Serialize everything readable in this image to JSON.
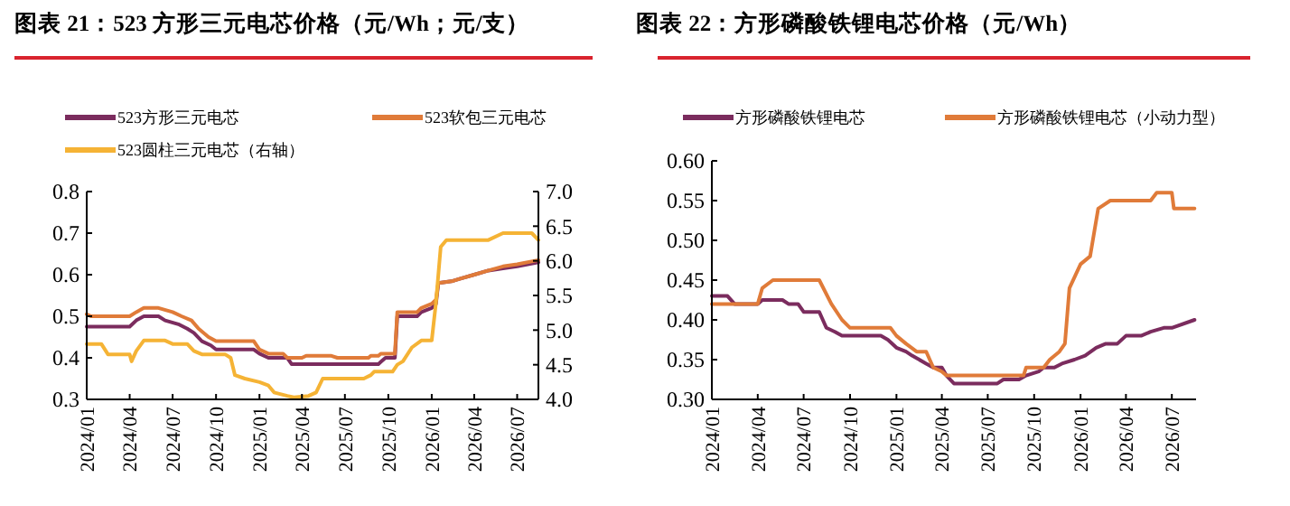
{
  "chart_data": [
    {
      "type": "line",
      "title": "图表 21：523 方形三元电芯价格（元/Wh；元/支）",
      "legend": "top",
      "xlim": [
        "2024-01",
        "2026-08-15"
      ],
      "xticks": [
        {
          "value": "2024-01",
          "label": "2024/01"
        },
        {
          "value": "2024-04",
          "label": "2024/04"
        },
        {
          "value": "2024-07",
          "label": "2024/07"
        },
        {
          "value": "2024-10",
          "label": "2024/10"
        },
        {
          "value": "2025-01",
          "label": "2025/01"
        },
        {
          "value": "2025-04",
          "label": "2025/04"
        },
        {
          "value": "2025-07",
          "label": "2025/07"
        },
        {
          "value": "2025-10",
          "label": "2025/10"
        },
        {
          "value": "2026-01",
          "label": "2026/01"
        },
        {
          "value": "2026-04",
          "label": "2026/04"
        },
        {
          "value": "2026-07",
          "label": "2026/07"
        }
      ],
      "ylim": [
        0.3,
        0.8
      ],
      "yticks": [
        0.3,
        0.4,
        0.5,
        0.6,
        0.7,
        0.8
      ],
      "y2lim": [
        4,
        7
      ],
      "y2ticks": [
        {
          "value": 4,
          "label": "4.0"
        },
        {
          "value": 4.5,
          "label": "4.5"
        },
        {
          "value": 5,
          "label": "5.0"
        },
        {
          "value": 5.5,
          "label": "5.5"
        },
        {
          "value": 6,
          "label": "6.0"
        },
        {
          "value": 6.5,
          "label": "6.5"
        },
        {
          "value": 7,
          "label": "7.0"
        }
      ],
      "series": [
        {
          "name": "523方形三元电芯",
          "color": "#7b2c5e",
          "x": [
            "2024-01",
            "2024-04",
            "2024-04-15",
            "2024-05",
            "2024-06",
            "2024-06-15",
            "2024-07-15",
            "2024-08",
            "2024-08-15",
            "2024-09",
            "2024-09-20",
            "2024-10",
            "2024-12-20",
            "2025-01",
            "2025-01-20",
            "2025-03",
            "2025-03-10",
            "2025-09-10",
            "2025-09-15",
            "2025-09-25",
            "2025-10-15",
            "2025-10-20",
            "2025-12",
            "2025-12-10",
            "2026-01",
            "2026-01-10",
            "2026-01-15",
            "2026-02-15",
            "2026-03",
            "2026-04",
            "2026-05",
            "2026-06",
            "2026-07",
            "2026-08-15"
          ],
          "values": [
            0.475,
            0.475,
            0.49,
            0.5,
            0.5,
            0.49,
            0.48,
            0.47,
            0.46,
            0.44,
            0.43,
            0.42,
            0.42,
            0.41,
            0.4,
            0.4,
            0.385,
            0.385,
            0.39,
            0.4,
            0.4,
            0.5,
            0.5,
            0.51,
            0.52,
            0.53,
            0.58,
            0.585,
            0.59,
            0.6,
            0.61,
            0.615,
            0.62,
            0.63
          ]
        },
        {
          "name": "523软包三元电芯",
          "color": "#e07b39",
          "x": [
            "2024-01",
            "2024-01-10",
            "2024-04",
            "2024-04-15",
            "2024-05",
            "2024-06",
            "2024-07",
            "2024-07-20",
            "2024-08-10",
            "2024-08-25",
            "2024-09-15",
            "2024-10",
            "2024-12-20",
            "2025-01",
            "2025-01-20",
            "2025-02-20",
            "2025-03",
            "2025-04",
            "2025-04-10",
            "2025-06",
            "2025-06-15",
            "2025-08-20",
            "2025-08-25",
            "2025-09-10",
            "2025-09-15",
            "2025-10-15",
            "2025-10-20",
            "2025-12",
            "2025-12-10",
            "2026-01",
            "2026-01-10",
            "2026-01-15",
            "2026-02-15",
            "2026-03",
            "2026-04",
            "2026-05",
            "2026-06",
            "2026-07",
            "2026-08-15"
          ],
          "values": [
            0.505,
            0.5,
            0.5,
            0.51,
            0.52,
            0.52,
            0.51,
            0.5,
            0.49,
            0.47,
            0.45,
            0.44,
            0.44,
            0.42,
            0.41,
            0.41,
            0.4,
            0.4,
            0.405,
            0.405,
            0.4,
            0.4,
            0.405,
            0.405,
            0.41,
            0.41,
            0.51,
            0.51,
            0.52,
            0.53,
            0.54,
            0.58,
            0.585,
            0.59,
            0.6,
            0.61,
            0.62,
            0.625,
            0.635
          ]
        },
        {
          "name": "523圆柱三元电芯（右轴）",
          "color": "#f5b335",
          "axis": "y2",
          "x": [
            "2024-01",
            "2024-02",
            "2024-02-15",
            "2024-04",
            "2024-04-05",
            "2024-04-15",
            "2024-05",
            "2024-06-15",
            "2024-07",
            "2024-08",
            "2024-08-15",
            "2024-09",
            "2024-10-20",
            "2024-11",
            "2024-11-10",
            "2024-12",
            "2025-01",
            "2025-01-20",
            "2025-02",
            "2025-03",
            "2025-03-15",
            "2025-04-15",
            "2025-05",
            "2025-05-15",
            "2025-08-10",
            "2025-08-25",
            "2025-09",
            "2025-10-10",
            "2025-10-20",
            "2025-11",
            "2025-11-20",
            "2025-12-10",
            "2026-01",
            "2026-01-10",
            "2026-01-20",
            "2026-02",
            "2026-05",
            "2026-06",
            "2026-08",
            "2026-08-15"
          ],
          "values": [
            4.8,
            4.8,
            4.65,
            4.65,
            4.55,
            4.7,
            4.85,
            4.85,
            4.8,
            4.8,
            4.7,
            4.65,
            4.65,
            4.6,
            4.35,
            4.3,
            4.25,
            4.2,
            4.1,
            4.05,
            4.03,
            4.05,
            4.1,
            4.3,
            4.3,
            4.35,
            4.4,
            4.4,
            4.5,
            4.55,
            4.75,
            4.85,
            4.85,
            5.4,
            6.2,
            6.3,
            6.3,
            6.4,
            6.4,
            6.3
          ]
        }
      ]
    },
    {
      "type": "line",
      "title": "图表 22：方形磷酸铁锂电芯价格（元/Wh）",
      "legend": "top",
      "xlim": [
        "2024-01",
        "2026-08-18"
      ],
      "xticks": [
        {
          "value": "2024-01",
          "label": "2024/01"
        },
        {
          "value": "2024-04",
          "label": "2024/04"
        },
        {
          "value": "2024-07",
          "label": "2024/07"
        },
        {
          "value": "2024-10",
          "label": "2024/10"
        },
        {
          "value": "2025-01",
          "label": "2025/01"
        },
        {
          "value": "2025-04",
          "label": "2025/04"
        },
        {
          "value": "2025-07",
          "label": "2025/07"
        },
        {
          "value": "2025-10",
          "label": "2025/10"
        },
        {
          "value": "2026-01",
          "label": "2026/01"
        },
        {
          "value": "2026-04",
          "label": "2026/04"
        },
        {
          "value": "2026-07",
          "label": "2026/07"
        }
      ],
      "ylim": [
        0.3,
        0.6
      ],
      "yticks": [
        {
          "value": 0.3,
          "label": "0.30"
        },
        {
          "value": 0.35,
          "label": "0.35"
        },
        {
          "value": 0.4,
          "label": "0.40"
        },
        {
          "value": 0.45,
          "label": "0.45"
        },
        {
          "value": 0.5,
          "label": "0.50"
        },
        {
          "value": 0.55,
          "label": "0.55"
        },
        {
          "value": 0.6,
          "label": "0.60"
        }
      ],
      "series": [
        {
          "name": "方形磷酸铁锂电芯",
          "color": "#7b2c5e",
          "x": [
            "2024-01",
            "2024-02",
            "2024-02-15",
            "2024-04",
            "2024-04-10",
            "2024-05-20",
            "2024-06",
            "2024-06-20",
            "2024-07",
            "2024-08",
            "2024-08-15",
            "2024-09",
            "2024-09-15",
            "2024-12",
            "2024-12-15",
            "2025-01",
            "2025-01-20",
            "2025-02",
            "2025-03",
            "2025-03-15",
            "2025-04",
            "2025-04-10",
            "2025-04-25",
            "2025-07-20",
            "2025-08",
            "2025-09",
            "2025-09-15",
            "2025-10-10",
            "2025-10-20",
            "2025-11-10",
            "2025-11-25",
            "2025-12-20",
            "2026-01-10",
            "2026-02",
            "2026-02-20",
            "2026-03-15",
            "2026-04",
            "2026-05",
            "2026-05-20",
            "2026-06-15",
            "2026-07",
            "2026-08-15"
          ],
          "values": [
            0.43,
            0.43,
            0.42,
            0.42,
            0.425,
            0.425,
            0.42,
            0.42,
            0.41,
            0.41,
            0.39,
            0.385,
            0.38,
            0.38,
            0.375,
            0.365,
            0.36,
            0.355,
            0.345,
            0.34,
            0.34,
            0.33,
            0.32,
            0.32,
            0.325,
            0.325,
            0.33,
            0.335,
            0.34,
            0.34,
            0.345,
            0.35,
            0.355,
            0.365,
            0.37,
            0.37,
            0.38,
            0.38,
            0.385,
            0.39,
            0.39,
            0.4
          ]
        },
        {
          "name": "方形磷酸铁锂电芯（小动力型）",
          "color": "#e07b39",
          "x": [
            "2024-01",
            "2024-04",
            "2024-04-10",
            "2024-05",
            "2024-08",
            "2024-08-25",
            "2024-09-15",
            "2024-10",
            "2024-12-20",
            "2025-01",
            "2025-01-20",
            "2025-02-10",
            "2025-03",
            "2025-03-15",
            "2025-04",
            "2025-04-10",
            "2025-09-10",
            "2025-09-15",
            "2025-10-20",
            "2025-11",
            "2025-11-20",
            "2025-12",
            "2025-12-10",
            "2026-01",
            "2026-01-20",
            "2026-02-05",
            "2026-03",
            "2026-05-20",
            "2026-06",
            "2026-07",
            "2026-07-05",
            "2026-08-15"
          ],
          "values": [
            0.42,
            0.42,
            0.44,
            0.45,
            0.45,
            0.42,
            0.4,
            0.39,
            0.39,
            0.38,
            0.37,
            0.36,
            0.36,
            0.34,
            0.335,
            0.33,
            0.33,
            0.34,
            0.34,
            0.35,
            0.36,
            0.37,
            0.44,
            0.47,
            0.48,
            0.54,
            0.55,
            0.55,
            0.56,
            0.56,
            0.54,
            0.54
          ]
        }
      ]
    }
  ]
}
